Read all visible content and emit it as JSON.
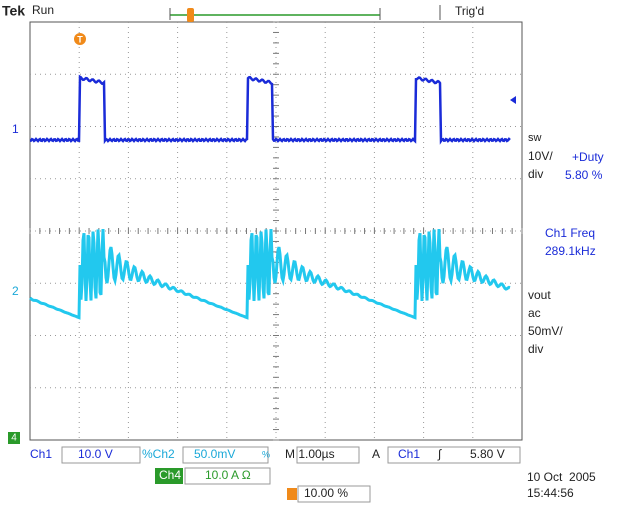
{
  "header": {
    "brand": "Tek",
    "status": "Run",
    "trigger_status": "Trig'd"
  },
  "markers": {
    "trigger_position": "T",
    "ch1": "1",
    "ch2": "2",
    "ch4": "4"
  },
  "readouts": {
    "ch1_lines": [
      "sw",
      "10V/",
      "div"
    ],
    "duty_label": "+Duty",
    "duty_value": "5.80 %",
    "freq_label": "Ch1 Freq",
    "freq_value": "289.1kHz",
    "ch2_lines": [
      "vout",
      "ac",
      "50mV/",
      "div"
    ]
  },
  "footer": {
    "ch1": "Ch1",
    "ch1_scale": "10.0 V",
    "ch2": "%Ch2",
    "ch2_scale": "50.0mV",
    "ch2_suffix": "%",
    "timebase": "M 1.00µs",
    "trigger_mode": "A",
    "trigger_source": "Ch1",
    "trigger_slope": "∫",
    "trigger_level": "5.80 V",
    "ch4": "Ch4",
    "ch4_scale": "10.0 A Ω",
    "trigger_offset": "10.00 %",
    "date": "10 Oct  2005",
    "time": "15:44:56"
  }
}
